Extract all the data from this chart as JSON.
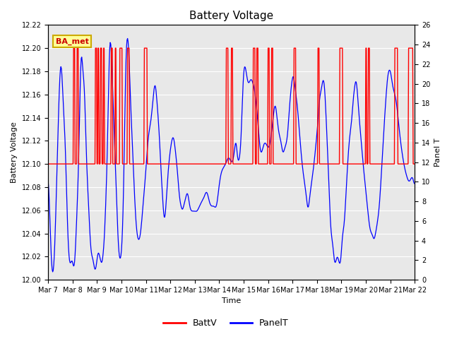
{
  "title": "Battery Voltage",
  "xlabel": "Time",
  "ylabel_left": "Battery Voltage",
  "ylabel_right": "Panel T",
  "ylim_left": [
    12.0,
    12.22
  ],
  "ylim_right": [
    0,
    26
  ],
  "yticks_left": [
    12.0,
    12.02,
    12.04,
    12.06,
    12.08,
    12.1,
    12.12,
    12.14,
    12.16,
    12.18,
    12.2,
    12.22
  ],
  "yticks_right": [
    0,
    2,
    4,
    6,
    8,
    10,
    12,
    14,
    16,
    18,
    20,
    22,
    24,
    26
  ],
  "x_tick_labels": [
    "Mar 7",
    "Mar 8",
    "Mar 9",
    "Mar 10",
    "Mar 11",
    "Mar 12",
    "Mar 13",
    "Mar 14",
    "Mar 15",
    "Mar 16",
    "Mar 17",
    "Mar 18",
    "Mar 19",
    "Mar 20",
    "Mar 21",
    "Mar 22"
  ],
  "background_color": "#ffffff",
  "plot_bg_color": "#e8e8e8",
  "batt_color": "#ff0000",
  "panel_color": "#0000ff",
  "legend_batt": "BattV",
  "legend_panel": "PanelT",
  "annotation_text": "BA_met",
  "annotation_bg": "#ffff99",
  "annotation_border": "#ccaa00",
  "grid_color": "#ffffff",
  "title_fontsize": 11,
  "tick_fontsize": 7,
  "label_fontsize": 8
}
